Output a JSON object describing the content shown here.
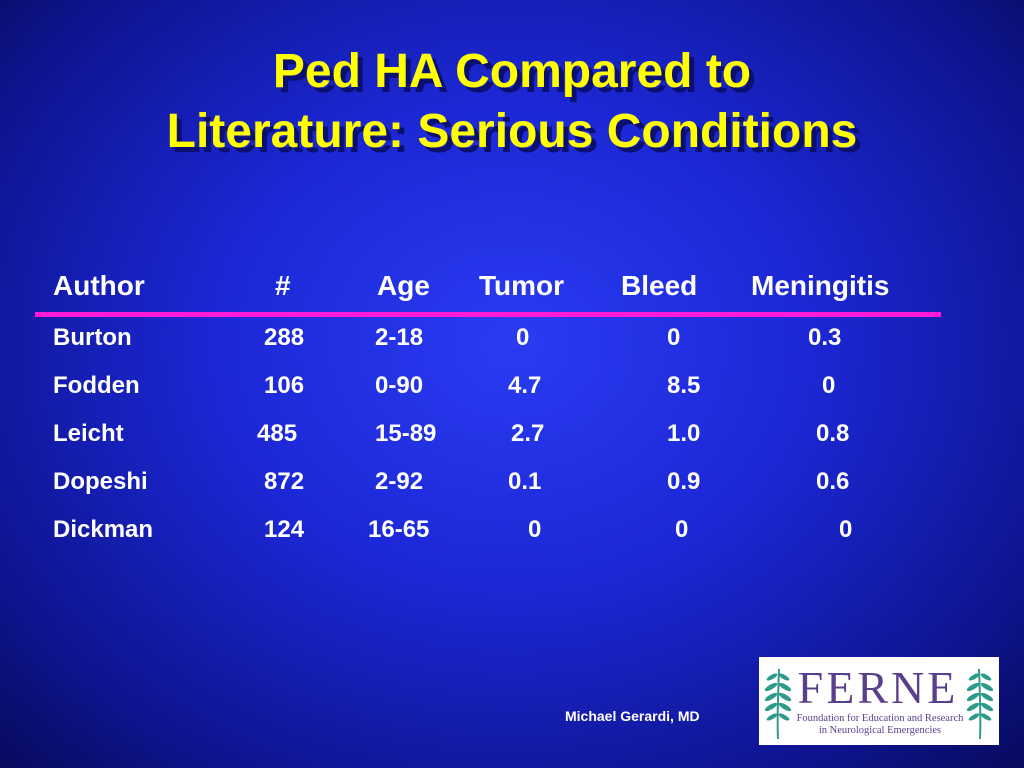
{
  "title": {
    "line1": "Ped HA Compared to",
    "line2": "Literature: Serious Conditions"
  },
  "table": {
    "headers": {
      "author": "Author",
      "count": "#",
      "age": "Age",
      "tumor": "Tumor",
      "bleed": "Bleed",
      "meningitis": "Meningitis"
    },
    "rows": [
      {
        "author": "Burton",
        "count": "288",
        "age": "2-18",
        "tumor": "0",
        "bleed": "0",
        "meningitis": "0.3"
      },
      {
        "author": "Fodden",
        "count": "106",
        "age": "0-90",
        "tumor": "4.7",
        "bleed": "8.5",
        "meningitis": "0"
      },
      {
        "author": "Leicht",
        "count": "485",
        "age": "15-89",
        "tumor": "2.7",
        "bleed": "1.0",
        "meningitis": "0.8"
      },
      {
        "author": "Dopeshi",
        "count": "872",
        "age": "2-92",
        "tumor": "0.1",
        "bleed": "0.9",
        "meningitis": "0.6"
      },
      {
        "author": "Dickman",
        "count": "124",
        "age": "16-65",
        "tumor": "0",
        "bleed": "0",
        "meningitis": "0"
      }
    ]
  },
  "footer": {
    "presenter": "Michael Gerardi, MD"
  },
  "logo": {
    "letters": "FERNE",
    "subtitle_line1": "Foundation for Education and Research",
    "subtitle_line2": "in Neurological Emergencies",
    "color": "#5a3f8c",
    "fern_color": "#2e9a8a"
  },
  "colors": {
    "title": "#ffff00",
    "text": "#ffffff",
    "rule": "#ff1ad9",
    "background": "#1c28d6"
  }
}
